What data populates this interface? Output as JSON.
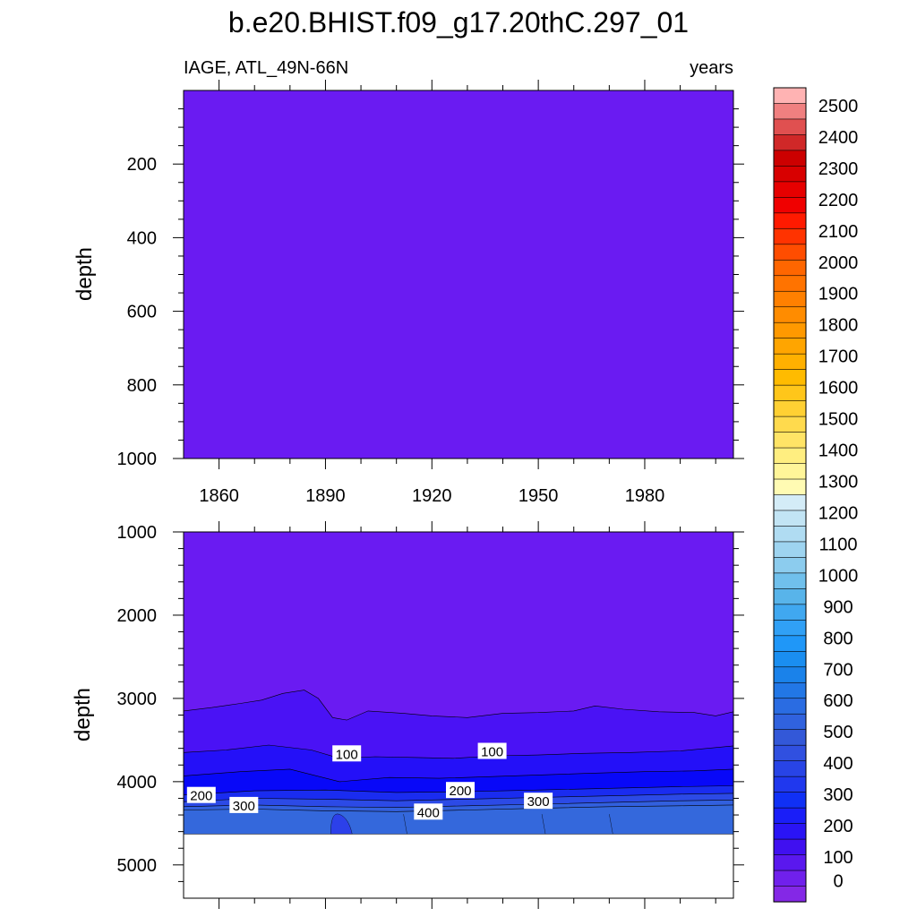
{
  "figure": {
    "title": "b.e20.BHIST.f09_g17.20thC.297_01",
    "left_string": "IAGE, ATL_49N-66N",
    "right_string": "years"
  },
  "chart_data": [
    {
      "type": "heatmap",
      "panel": "upper",
      "ylabel": "depth",
      "ylim": [
        0,
        1000
      ],
      "y_inverted": true,
      "yticks": [
        200,
        400,
        600,
        800,
        1000
      ],
      "xlim": [
        1850,
        2005
      ],
      "xticks": [
        1860,
        1890,
        1920,
        1950,
        1980
      ],
      "fill_level": "0-50",
      "fill_color": "#6a1bf2"
    },
    {
      "type": "heatmap",
      "panel": "lower",
      "ylabel": "depth",
      "ylim": [
        1000,
        5400
      ],
      "y_inverted": true,
      "yticks": [
        1000,
        2000,
        3000,
        4000,
        5000
      ],
      "xlim": [
        1850,
        2005
      ],
      "xticks": [
        1860,
        1890,
        1920,
        1950,
        1980
      ],
      "missing_below_depth": 4630,
      "contour_lines": [
        {
          "level": 50,
          "points": [
            [
              1850,
              3150
            ],
            [
              1858,
              3110
            ],
            [
              1866,
              3060
            ],
            [
              1872,
              3020
            ],
            [
              1878,
              2940
            ],
            [
              1884,
              2900
            ],
            [
              1888,
              3000
            ],
            [
              1892,
              3230
            ],
            [
              1896,
              3260
            ],
            [
              1902,
              3150
            ],
            [
              1912,
              3180
            ],
            [
              1920,
              3210
            ],
            [
              1930,
              3230
            ],
            [
              1940,
              3180
            ],
            [
              1950,
              3170
            ],
            [
              1960,
              3150
            ],
            [
              1966,
              3090
            ],
            [
              1974,
              3130
            ],
            [
              1984,
              3160
            ],
            [
              1994,
              3170
            ],
            [
              2000,
              3210
            ],
            [
              2005,
              3160
            ]
          ]
        },
        {
          "level": 100,
          "points": [
            [
              1850,
              3650
            ],
            [
              1862,
              3620
            ],
            [
              1874,
              3560
            ],
            [
              1886,
              3620
            ],
            [
              1894,
              3720
            ],
            [
              1904,
              3700
            ],
            [
              1916,
              3710
            ],
            [
              1926,
              3720
            ],
            [
              1938,
              3690
            ],
            [
              1950,
              3680
            ],
            [
              1962,
              3660
            ],
            [
              1976,
              3650
            ],
            [
              1990,
              3630
            ],
            [
              2005,
              3570
            ]
          ]
        },
        {
          "level": 150,
          "points": [
            [
              1850,
              3930
            ],
            [
              1866,
              3880
            ],
            [
              1880,
              3850
            ],
            [
              1894,
              4000
            ],
            [
              1908,
              3950
            ],
            [
              1922,
              3960
            ],
            [
              1936,
              3940
            ],
            [
              1950,
              3920
            ],
            [
              1964,
              3900
            ],
            [
              1980,
              3880
            ],
            [
              1994,
              3870
            ],
            [
              2005,
              3850
            ]
          ]
        },
        {
          "level": 200,
          "points": [
            [
              1850,
              4160
            ],
            [
              1870,
              4110
            ],
            [
              1890,
              4100
            ],
            [
              1910,
              4130
            ],
            [
              1930,
              4120
            ],
            [
              1950,
              4100
            ],
            [
              1970,
              4080
            ],
            [
              1990,
              4060
            ],
            [
              2005,
              4050
            ]
          ]
        },
        {
          "level": 250,
          "points": [
            [
              1850,
              4240
            ],
            [
              1870,
              4200
            ],
            [
              1890,
              4210
            ],
            [
              1910,
              4230
            ],
            [
              1930,
              4210
            ],
            [
              1950,
              4190
            ],
            [
              1970,
              4170
            ],
            [
              1990,
              4150
            ],
            [
              2005,
              4140
            ]
          ]
        },
        {
          "level": 300,
          "points": [
            [
              1850,
              4300
            ],
            [
              1870,
              4280
            ],
            [
              1890,
              4300
            ],
            [
              1910,
              4310
            ],
            [
              1930,
              4290
            ],
            [
              1950,
              4270
            ],
            [
              1970,
              4250
            ],
            [
              1990,
              4230
            ],
            [
              2005,
              4220
            ]
          ]
        },
        {
          "level": 350,
          "points": [
            [
              1850,
              4340
            ],
            [
              1870,
              4330
            ],
            [
              1890,
              4350
            ],
            [
              1910,
              4360
            ],
            [
              1930,
              4340
            ],
            [
              1950,
              4320
            ],
            [
              1970,
              4300
            ],
            [
              1990,
              4290
            ],
            [
              2005,
              4280
            ]
          ]
        }
      ],
      "contour_labels": [
        {
          "text": "100",
          "x": 1896,
          "y": 3660
        },
        {
          "text": "100",
          "x": 1937,
          "y": 3630
        },
        {
          "text": "200",
          "x": 1855,
          "y": 4160
        },
        {
          "text": "200",
          "x": 1928,
          "y": 4100
        },
        {
          "text": "300",
          "x": 1867,
          "y": 4280
        },
        {
          "text": "300",
          "x": 1950,
          "y": 4230
        },
        {
          "text": "400",
          "x": 1919,
          "y": 4360
        }
      ]
    }
  ],
  "colorbar": {
    "labels": [
      "2500",
      "2400",
      "2300",
      "2200",
      "2100",
      "2000",
      "1900",
      "1800",
      "1700",
      "1600",
      "1500",
      "1400",
      "1300",
      "1200",
      "1100",
      "1000",
      "900",
      "800",
      "700",
      "600",
      "500",
      "400",
      "300",
      "200",
      "100",
      "0"
    ],
    "colors_top_to_bottom": [
      "#ffb3b3",
      "#f08080",
      "#e05050",
      "#d02828",
      "#cc0000",
      "#d80000",
      "#e60000",
      "#f00000",
      "#ff1a00",
      "#ff3300",
      "#ff4d00",
      "#ff6600",
      "#ff7300",
      "#ff8000",
      "#ff8c00",
      "#ff9900",
      "#ffa500",
      "#ffb000",
      "#ffbb00",
      "#ffc61a",
      "#ffd033",
      "#ffda4d",
      "#ffe466",
      "#ffee80",
      "#fff599",
      "#fffbb3",
      "#d4ecf7",
      "#c2e4f4",
      "#b0dcf2",
      "#9ed4f0",
      "#8cccee",
      "#70c0ec",
      "#58b4ea",
      "#40a8f0",
      "#30a0f5",
      "#1f97f8",
      "#1a8ef0",
      "#1a82ea",
      "#2277e6",
      "#2a6ce2",
      "#3062de",
      "#3358d8",
      "#3050e0",
      "#2844e6",
      "#2038ee",
      "#1030f5",
      "#1a1ef8",
      "#2a14f5",
      "#4010f0",
      "#5a18ee",
      "#7020ec",
      "#8428e6"
    ]
  }
}
